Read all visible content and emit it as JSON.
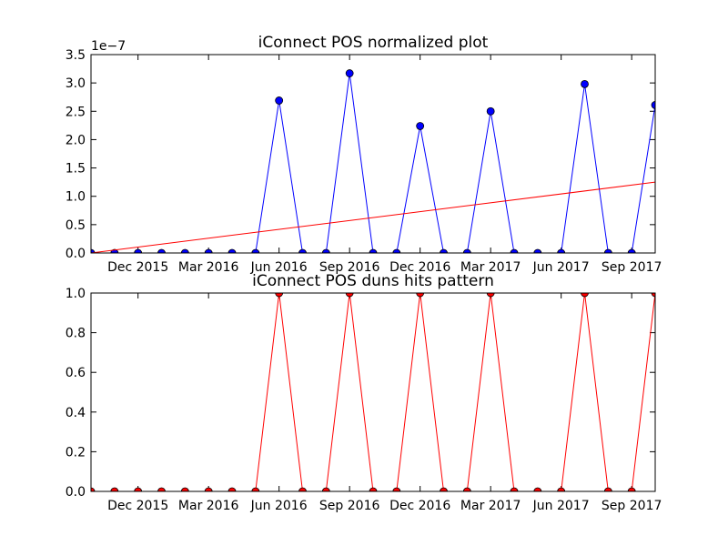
{
  "chart_data": [
    {
      "type": "line",
      "title": "iConnect POS normalized plot",
      "xlabel": "",
      "ylabel": "",
      "y_scale_label": "1e−7",
      "x": [
        "2015-10",
        "2015-11",
        "2015-12",
        "2016-01",
        "2016-02",
        "2016-03",
        "2016-04",
        "2016-05",
        "2016-06",
        "2016-07",
        "2016-08",
        "2016-09",
        "2016-10",
        "2016-11",
        "2016-12",
        "2017-01",
        "2017-02",
        "2017-03",
        "2017-04",
        "2017-05",
        "2017-06",
        "2017-07",
        "2017-08",
        "2017-09",
        "2017-10"
      ],
      "xlim": [
        "2015-10",
        "2017-10"
      ],
      "x_ticks": [
        {
          "x": "2015-12",
          "label": "Dec 2015"
        },
        {
          "x": "2016-03",
          "label": "Mar 2016"
        },
        {
          "x": "2016-06",
          "label": "Jun 2016"
        },
        {
          "x": "2016-09",
          "label": "Sep 2016"
        },
        {
          "x": "2016-12",
          "label": "Dec 2016"
        },
        {
          "x": "2017-03",
          "label": "Mar 2017"
        },
        {
          "x": "2017-06",
          "label": "Jun 2017"
        },
        {
          "x": "2017-09",
          "label": "Sep 2017"
        }
      ],
      "ylim": [
        0,
        3.5
      ],
      "y_ticks": [
        "0.0",
        "0.5",
        "1.0",
        "1.5",
        "2.0",
        "2.5",
        "3.0",
        "3.5"
      ],
      "grid": false,
      "series": [
        {
          "color": "#0000ff",
          "marker": "circle",
          "values": [
            0,
            0,
            0,
            0,
            0,
            0,
            0,
            0,
            2.69,
            0,
            0,
            3.17,
            0,
            0,
            2.24,
            0,
            0,
            2.5,
            0,
            0,
            0,
            2.98,
            0,
            0,
            2.61
          ]
        },
        {
          "color": "#ff0000",
          "marker": "none",
          "points": [
            [
              0,
              0
            ],
            [
              24,
              1.25
            ]
          ]
        }
      ]
    },
    {
      "type": "line",
      "title": "iConnect POS duns hits pattern",
      "xlabel": "",
      "ylabel": "",
      "x": [
        "2015-10",
        "2015-11",
        "2015-12",
        "2016-01",
        "2016-02",
        "2016-03",
        "2016-04",
        "2016-05",
        "2016-06",
        "2016-07",
        "2016-08",
        "2016-09",
        "2016-10",
        "2016-11",
        "2016-12",
        "2017-01",
        "2017-02",
        "2017-03",
        "2017-04",
        "2017-05",
        "2017-06",
        "2017-07",
        "2017-08",
        "2017-09",
        "2017-10"
      ],
      "xlim": [
        "2015-10",
        "2017-10"
      ],
      "x_ticks": [
        {
          "x": "2015-12",
          "label": "Dec 2015"
        },
        {
          "x": "2016-03",
          "label": "Mar 2016"
        },
        {
          "x": "2016-06",
          "label": "Jun 2016"
        },
        {
          "x": "2016-09",
          "label": "Sep 2016"
        },
        {
          "x": "2016-12",
          "label": "Dec 2016"
        },
        {
          "x": "2017-03",
          "label": "Mar 2017"
        },
        {
          "x": "2017-06",
          "label": "Jun 2017"
        },
        {
          "x": "2017-09",
          "label": "Sep 2017"
        }
      ],
      "ylim": [
        0,
        1.0
      ],
      "y_ticks": [
        "0.0",
        "0.2",
        "0.4",
        "0.6",
        "0.8",
        "1.0"
      ],
      "grid": false,
      "series": [
        {
          "color": "#ff0000",
          "marker": "circle",
          "values": [
            0,
            0,
            0,
            0,
            0,
            0,
            0,
            0,
            1,
            0,
            0,
            1,
            0,
            0,
            1,
            0,
            0,
            1,
            0,
            0,
            0,
            1,
            0,
            0,
            1
          ]
        }
      ]
    }
  ]
}
